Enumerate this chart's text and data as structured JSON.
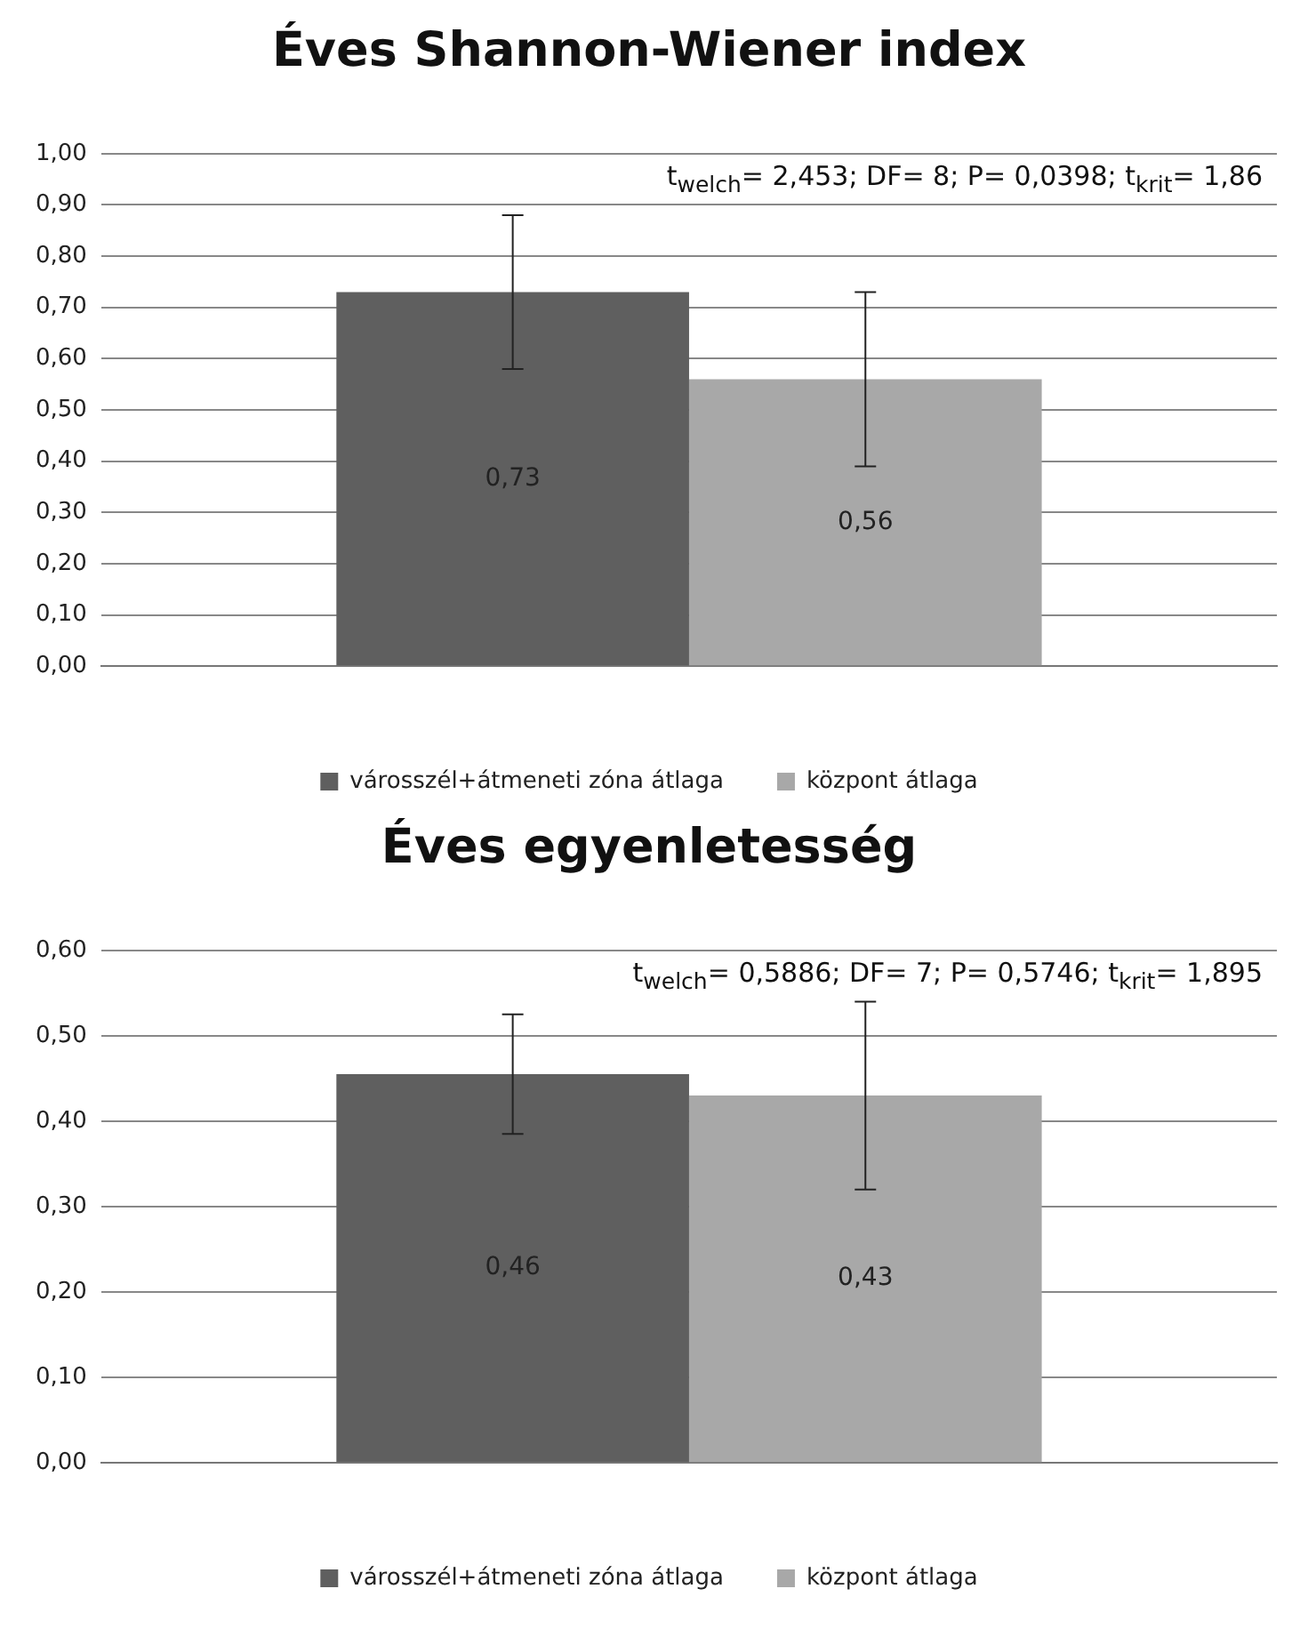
{
  "chart_data": [
    {
      "type": "bar",
      "title": "Éves Shannon-Wiener index",
      "categories": [
        null
      ],
      "series": [
        {
          "name": "városszél+átmeneti zóna átlaga",
          "color": "#5f5f5f",
          "values": [
            0.73
          ],
          "errors": [
            [
              0.58,
              0.88
            ]
          ],
          "value_labels": [
            "0,73"
          ]
        },
        {
          "name": "központ átlaga",
          "color": "#a8a8a8",
          "values": [
            0.56
          ],
          "errors": [
            [
              0.39,
              0.73
            ]
          ],
          "value_labels": [
            "0,56"
          ]
        }
      ],
      "ylim": [
        0,
        1
      ],
      "yticks": [
        {
          "value": 0,
          "label": "0,00"
        },
        {
          "value": 0.1,
          "label": "0,10"
        },
        {
          "value": 0.2,
          "label": "0,20"
        },
        {
          "value": 0.3,
          "label": "0,30"
        },
        {
          "value": 0.4,
          "label": "0,40"
        },
        {
          "value": 0.5,
          "label": "0,50"
        },
        {
          "value": 0.6,
          "label": "0,60"
        },
        {
          "value": 0.7,
          "label": "0,70"
        },
        {
          "value": 0.8,
          "label": "0,80"
        },
        {
          "value": 0.9,
          "label": "0,90"
        },
        {
          "value": 1,
          "label": "1,00"
        }
      ],
      "grid": "y",
      "legend": "bottom",
      "annotations": [
        "t$_{welch}$= 2,453;  DF= 8;  P= 0,0398;  t$_{krit}$= 1,86"
      ]
    },
    {
      "type": "bar",
      "title": "Éves egyenletesség",
      "categories": [
        null
      ],
      "series": [
        {
          "name": "városszél+átmeneti zóna átlaga",
          "color": "#5f5f5f",
          "values": [
            0.455
          ],
          "errors": [
            [
              0.385,
              0.525
            ]
          ],
          "value_labels": [
            "0,46"
          ]
        },
        {
          "name": "központ átlaga",
          "color": "#a8a8a8",
          "values": [
            0.43
          ],
          "errors": [
            [
              0.32,
              0.54
            ]
          ],
          "value_labels": [
            "0,43"
          ]
        }
      ],
      "ylim": [
        0,
        0.6
      ],
      "yticks": [
        {
          "value": 0,
          "label": "0,00"
        },
        {
          "value": 0.1,
          "label": "0,10"
        },
        {
          "value": 0.2,
          "label": "0,20"
        },
        {
          "value": 0.3,
          "label": "0,30"
        },
        {
          "value": 0.4,
          "label": "0,40"
        },
        {
          "value": 0.5,
          "label": "0,50"
        },
        {
          "value": 0.6,
          "label": "0,60"
        }
      ],
      "grid": "y",
      "legend": "bottom",
      "annotations": [
        "t$_{welch}$= 0,5886;  DF= 7;  P= 0,5746;  t$_{krit}$= 1,895"
      ]
    }
  ]
}
